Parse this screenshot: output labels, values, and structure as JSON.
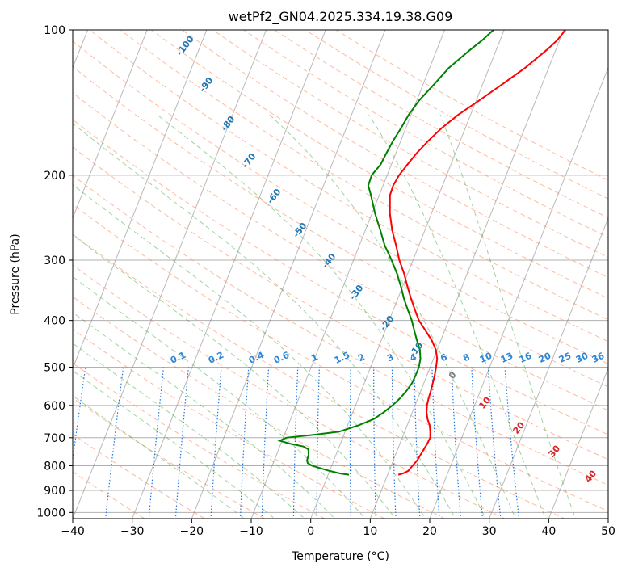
{
  "chart_data": {
    "type": "line",
    "title": "wetPf2_GN04.2025.334.19.38.G09",
    "xlabel": "Temperature (°C)",
    "ylabel": "Pressure (hPa)",
    "xlim": [
      -40,
      50
    ],
    "ylim": [
      1030,
      100
    ],
    "y_scale": "log",
    "grid": true,
    "x_ticks": [
      -40,
      -30,
      -20,
      -10,
      0,
      10,
      20,
      30,
      40,
      50
    ],
    "y_ticks": [
      100,
      200,
      300,
      400,
      500,
      600,
      700,
      800,
      900,
      1000
    ],
    "colors": {
      "temperature": "#ff0000",
      "dewpoint": "#008000",
      "dry_adiabat": "#ff7f50",
      "moist_adiabat": "#2ca02c",
      "mixing_ratio": "#1f77e4",
      "isotherm": "#808080",
      "axis": "#000000",
      "dry_label": "#1f77b4",
      "moist_label": "#d62728",
      "mixing_label": "#2a86d8"
    },
    "dry_adiabat_labels": [
      "-100",
      "-90",
      "-80",
      "-70",
      "-60",
      "-50",
      "-40",
      "-30",
      "-20",
      "-10"
    ],
    "moist_adiabat_labels": [
      "0",
      "10",
      "20",
      "30",
      "40"
    ],
    "mixing_ratio_labels": [
      "0.1",
      "0.2",
      "0.4",
      "0.6",
      "1",
      "1.5",
      "2",
      "3",
      "4",
      "6",
      "8",
      "10",
      "13",
      "16",
      "20",
      "25",
      "30",
      "36"
    ],
    "mixing_ratio_values": [
      0.1,
      0.2,
      0.4,
      0.6,
      1,
      1.5,
      2,
      3,
      4,
      6,
      8,
      10,
      13,
      16,
      20,
      25,
      30,
      36
    ],
    "series": [
      {
        "p": [
          835,
          830,
          820,
          800,
          780,
          760,
          740,
          720,
          700,
          680,
          660,
          640,
          620,
          600,
          580,
          560,
          540,
          520,
          500,
          480,
          460,
          440,
          420,
          400,
          380,
          360,
          340,
          320,
          300,
          280,
          260,
          240,
          220,
          210,
          200,
          190,
          180,
          170,
          160,
          150,
          140,
          130,
          120,
          110,
          105,
          100
        ],
        "t": [
          11.8,
          12.5,
          13.2,
          13.6,
          14.0,
          14.2,
          14.4,
          14.6,
          14.7,
          14.3,
          13.8,
          13.0,
          12.4,
          12.0,
          11.8,
          11.7,
          11.5,
          11.3,
          11.0,
          10.6,
          9.8,
          8.5,
          6.8,
          5.0,
          3.6,
          2.2,
          0.8,
          -0.6,
          -2.3,
          -3.8,
          -5.5,
          -7.0,
          -8.2,
          -8.3,
          -8.0,
          -7.3,
          -6.5,
          -5.4,
          -4.0,
          -2.1,
          0.5,
          3.2,
          6.0,
          8.5,
          9.6,
          10.3
        ]
      },
      {
        "p": [
          835,
          830,
          820,
          800,
          790,
          780,
          760,
          740,
          730,
          720,
          710,
          700,
          690,
          680,
          660,
          640,
          620,
          600,
          580,
          560,
          540,
          520,
          500,
          480,
          460,
          440,
          420,
          400,
          380,
          360,
          340,
          320,
          300,
          280,
          260,
          240,
          220,
          210,
          200,
          190,
          180,
          170,
          160,
          150,
          140,
          130,
          120,
          110,
          105,
          100
        ],
        "t": [
          3.5,
          1.9,
          0.0,
          -3.3,
          -4.2,
          -4.5,
          -4.6,
          -5.0,
          -6.0,
          -8.5,
          -10.4,
          -9.5,
          -5.0,
          -1.0,
          1.8,
          4.0,
          5.2,
          6.2,
          7.0,
          7.6,
          8.0,
          8.1,
          8.1,
          7.8,
          7.1,
          6.0,
          4.9,
          3.8,
          2.4,
          1.0,
          -0.3,
          -1.8,
          -3.6,
          -5.7,
          -7.5,
          -9.5,
          -11.4,
          -12.5,
          -12.6,
          -11.8,
          -11.6,
          -11.3,
          -10.8,
          -10.4,
          -9.6,
          -8.2,
          -6.8,
          -4.4,
          -3.0,
          -1.8
        ]
      }
    ]
  }
}
